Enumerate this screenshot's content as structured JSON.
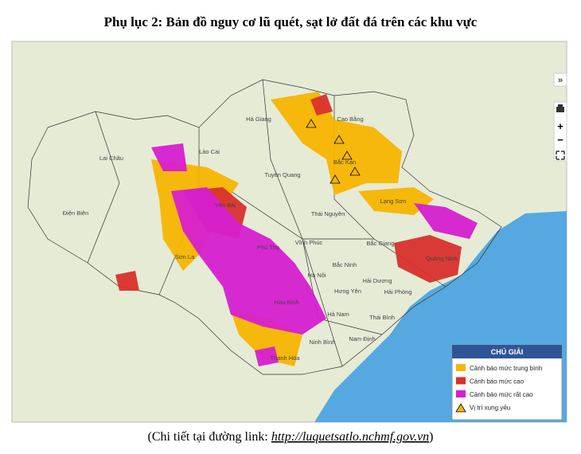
{
  "header": {
    "title": "Phụ lục 2: Bản đồ nguy cơ lũ quét, sạt lở đất đá trên các khu vực"
  },
  "map": {
    "places": [
      "Hà Giang",
      "Cao Bằng",
      "Lào Cai",
      "Lai Châu",
      "Bắc Kạn",
      "Tuyên Quang",
      "Yên Bái",
      "Lạng Sơn",
      "Thái Nguyên",
      "Điện Biên",
      "Bắc Giang",
      "Quảng Ninh",
      "Vĩnh Phúc",
      "Phú Thọ",
      "Sơn La",
      "Bắc Ninh",
      "Hà Nội",
      "Hải Dương",
      "Hưng Yên",
      "Hải Phòng",
      "Hòa Bình",
      "Hà Nam",
      "Thái Bình",
      "Nam Định",
      "Ninh Bình",
      "Thanh Hóa"
    ],
    "controls": {
      "collapse": "»",
      "zoom_in": "+",
      "zoom_out": "−"
    }
  },
  "legend": {
    "title": "CHÚ GIẢI",
    "items": [
      {
        "label": "Cảnh báo mức trung bình",
        "color": "#f7b500"
      },
      {
        "label": "Cảnh báo mức cao",
        "color": "#d9302c"
      },
      {
        "label": "Cảnh báo mức rất cao",
        "color": "#d61fd0"
      },
      {
        "label": "Vị trí xung yếu"
      }
    ]
  },
  "footer": {
    "prefix": "(Chi tiết tại đường link: ",
    "link": "http://luquetsatlo.nchmf.gov.vn",
    "suffix": ")"
  }
}
